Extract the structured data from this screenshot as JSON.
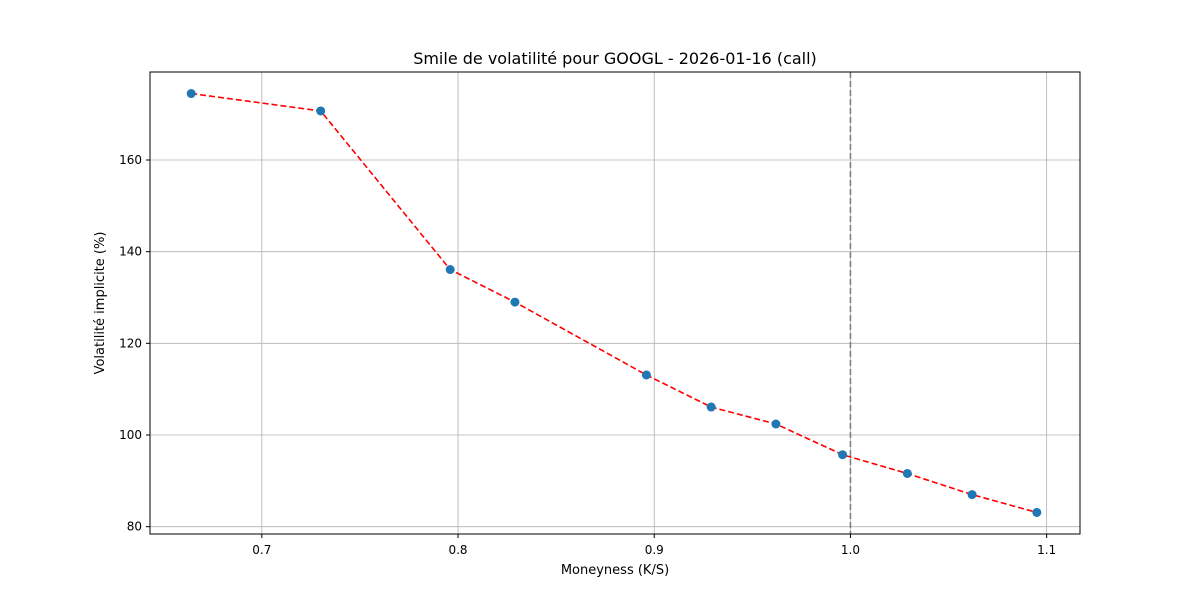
{
  "chart_data": {
    "type": "line",
    "title": "Smile de volatilité pour GOOGL - 2026-01-16 (call)",
    "xlabel": "Moneyness (K/S)",
    "ylabel": "Volatilité implicite (%)",
    "xlim": [
      0.643,
      1.117
    ],
    "ylim": [
      78.4,
      179.2
    ],
    "xticks": [
      {
        "value": 0.7,
        "label": "0.7"
      },
      {
        "value": 0.8,
        "label": "0.8"
      },
      {
        "value": 0.9,
        "label": "0.9"
      },
      {
        "value": 1.0,
        "label": "1.0"
      },
      {
        "value": 1.1,
        "label": "1.1"
      }
    ],
    "yticks": [
      {
        "value": 80,
        "label": "80"
      },
      {
        "value": 100,
        "label": "100"
      },
      {
        "value": 120,
        "label": "120"
      },
      {
        "value": 140,
        "label": "140"
      },
      {
        "value": 160,
        "label": "160"
      }
    ],
    "grid": true,
    "reference_line": {
      "x": 1.0,
      "color": "#808080",
      "style": "dashed"
    },
    "series": [
      {
        "line_color": "#ff0000",
        "line_style": "dashed",
        "marker_color": "#1f77b4",
        "points": [
          {
            "x": 0.664,
            "y": 174.5
          },
          {
            "x": 0.73,
            "y": 170.7
          },
          {
            "x": 0.796,
            "y": 136.1
          },
          {
            "x": 0.829,
            "y": 129.0
          },
          {
            "x": 0.896,
            "y": 113.1
          },
          {
            "x": 0.929,
            "y": 106.1
          },
          {
            "x": 0.962,
            "y": 102.4
          },
          {
            "x": 0.996,
            "y": 95.7
          },
          {
            "x": 1.029,
            "y": 91.6
          },
          {
            "x": 1.062,
            "y": 87.0
          },
          {
            "x": 1.095,
            "y": 83.1
          }
        ]
      }
    ]
  }
}
